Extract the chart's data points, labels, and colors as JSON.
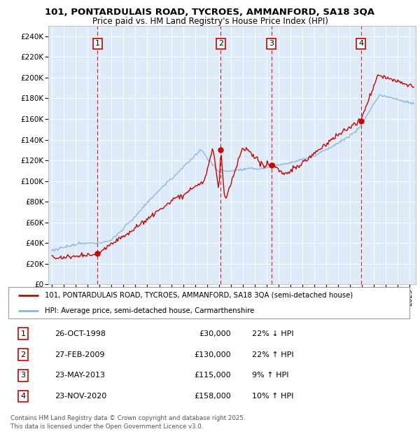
{
  "title": "101, PONTARDULAIS ROAD, TYCROES, AMMANFORD, SA18 3QA",
  "subtitle": "Price paid vs. HM Land Registry's House Price Index (HPI)",
  "ylim": [
    0,
    250000
  ],
  "xlim_start": 1994.7,
  "xlim_end": 2025.5,
  "hpi_color": "#8ab4d4",
  "price_color": "#cc0000",
  "dashed_color": "#cc0000",
  "bg_color": "#ddeaf7",
  "transactions": [
    {
      "num": 1,
      "date": "26-OCT-1998",
      "price": 30000,
      "pct": "22%",
      "dir": "↓",
      "year": 1998.82
    },
    {
      "num": 2,
      "date": "27-FEB-2009",
      "price": 130000,
      "pct": "22%",
      "dir": "↑",
      "year": 2009.16
    },
    {
      "num": 3,
      "date": "23-MAY-2013",
      "price": 115000,
      "pct": "9%",
      "dir": "↑",
      "year": 2013.39
    },
    {
      "num": 4,
      "date": "23-NOV-2020",
      "price": 158000,
      "pct": "10%",
      "dir": "↑",
      "year": 2020.9
    }
  ],
  "legend_line1": "101, PONTARDULAIS ROAD, TYCROES, AMMANFORD, SA18 3QA (semi-detached house)",
  "legend_line2": "HPI: Average price, semi-detached house, Carmarthenshire",
  "footer": "Contains HM Land Registry data © Crown copyright and database right 2025.\nThis data is licensed under the Open Government Licence v3.0.",
  "table_rows": [
    [
      "1",
      "26-OCT-1998",
      "£30,000",
      "22% ↓ HPI"
    ],
    [
      "2",
      "27-FEB-2009",
      "£130,000",
      "22% ↑ HPI"
    ],
    [
      "3",
      "23-MAY-2013",
      "£115,000",
      "9% ↑ HPI"
    ],
    [
      "4",
      "23-NOV-2020",
      "£158,000",
      "10% ↑ HPI"
    ]
  ]
}
